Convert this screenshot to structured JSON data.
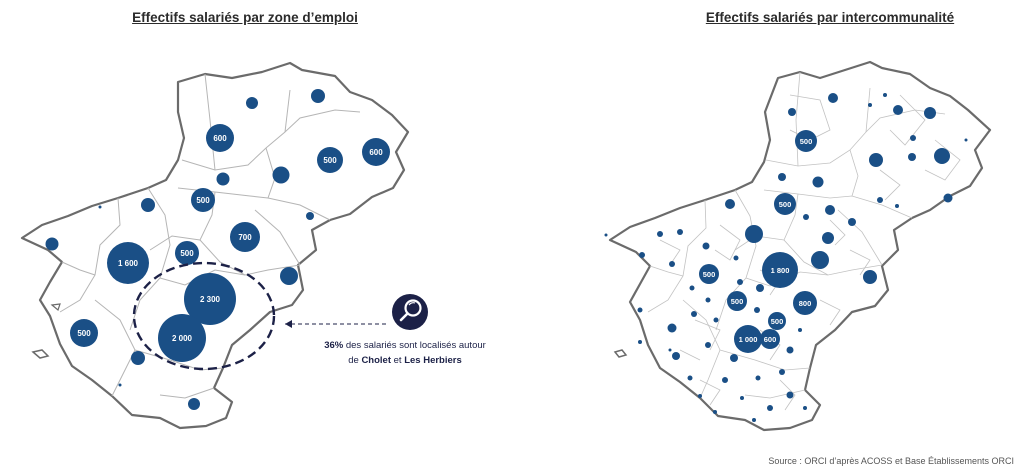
{
  "titles": {
    "left": "Effectifs salariés par zone d’emploi",
    "right": "Effectifs salariés par intercommunalité"
  },
  "callout": {
    "percent": "36%",
    "text1": " des salariés sont localisés autour",
    "text2": "de ",
    "city1": "Cholet",
    "and": " et ",
    "city2": "Les Herbiers"
  },
  "source": "Source : ORCI d’après ACOSS et Base Établissements ORCI",
  "colors": {
    "bubble": "#1a4f86",
    "outline": "#6b6b6b",
    "inner_border": "#b5b5b5",
    "callout_accent": "#1c2147"
  },
  "icons": [
    "magnifier-icon"
  ],
  "labels_left": [
    "600",
    "500",
    "600",
    "500",
    "700",
    "500",
    "1 600",
    "2 300",
    "2 000",
    "500"
  ],
  "labels_right": [
    "500",
    "500",
    "1 800",
    "500",
    "500",
    "800",
    "500",
    "1 000",
    "600"
  ]
}
